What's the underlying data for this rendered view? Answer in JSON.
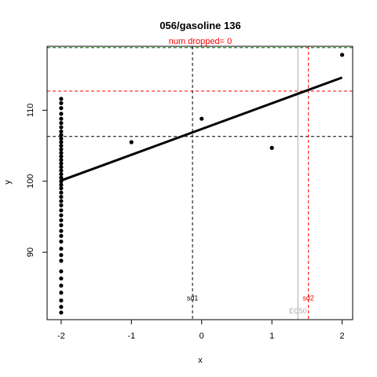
{
  "chart_data": {
    "type": "scatter",
    "title": "056/gasoline 136",
    "subtitle": "num dropped= 0",
    "xlabel": "x",
    "ylabel": "y",
    "xlim": [
      -2.2,
      2.15
    ],
    "ylim": [
      80.5,
      119.0
    ],
    "x_ticks": [
      -2,
      -1,
      0,
      1,
      2
    ],
    "x_tick_labels": [
      "-2",
      "-1",
      "0",
      "1",
      "2"
    ],
    "y_ticks": [
      90,
      100,
      110
    ],
    "y_tick_labels": [
      "90",
      "100",
      "110"
    ],
    "points": [
      [
        -2,
        81.5
      ],
      [
        -2,
        82.3
      ],
      [
        -2,
        83.2
      ],
      [
        -2,
        84.3
      ],
      [
        -2,
        85.3
      ],
      [
        -2,
        86.3
      ],
      [
        -2,
        87.3
      ],
      [
        -2,
        88.8
      ],
      [
        -2,
        89.6
      ],
      [
        -2,
        90.5
      ],
      [
        -2,
        91.5
      ],
      [
        -2,
        92.3
      ],
      [
        -2,
        93.0
      ],
      [
        -2,
        93.8
      ],
      [
        -2,
        94.5
      ],
      [
        -2,
        95.2
      ],
      [
        -2,
        95.9
      ],
      [
        -2,
        96.6
      ],
      [
        -2,
        97.2
      ],
      [
        -2,
        97.8
      ],
      [
        -2,
        98.4
      ],
      [
        -2,
        99.0
      ],
      [
        -2,
        99.5
      ],
      [
        -2,
        100.0
      ],
      [
        -2,
        100.5
      ],
      [
        -2,
        101.0
      ],
      [
        -2,
        101.5
      ],
      [
        -2,
        102.0
      ],
      [
        -2,
        102.5
      ],
      [
        -2,
        103.0
      ],
      [
        -2,
        103.5
      ],
      [
        -2,
        104.0
      ],
      [
        -2,
        104.5
      ],
      [
        -2,
        105.0
      ],
      [
        -2,
        105.5
      ],
      [
        -2,
        106.0
      ],
      [
        -2,
        106.5
      ],
      [
        -2,
        107.0
      ],
      [
        -2,
        107.6
      ],
      [
        -2,
        108.2
      ],
      [
        -2,
        108.8
      ],
      [
        -2,
        109.5
      ],
      [
        -2,
        110.3
      ],
      [
        -2,
        111.0
      ],
      [
        -2,
        111.6
      ],
      [
        -1,
        105.5
      ],
      [
        0,
        108.8
      ],
      [
        1,
        104.7
      ],
      [
        2,
        117.8
      ]
    ],
    "fit_line": [
      [
        -2,
        100.1
      ],
      [
        2,
        114.6
      ]
    ],
    "reference_lines": [
      {
        "orientation": "horizontal",
        "value": 118.8,
        "color": "#008000",
        "style": "dashed"
      },
      {
        "orientation": "horizontal",
        "value": 112.7,
        "color": "#ff0000",
        "style": "dashed"
      },
      {
        "orientation": "horizontal",
        "value": 106.3,
        "color": "#000000",
        "style": "dashed"
      },
      {
        "orientation": "vertical",
        "value": -0.13,
        "color": "#000000",
        "style": "dashed"
      },
      {
        "orientation": "vertical",
        "value": 1.37,
        "color": "#aaaaaa",
        "style": "solid"
      },
      {
        "orientation": "vertical",
        "value": 1.52,
        "color": "#ff0000",
        "style": "dashed"
      }
    ],
    "annotations": [
      {
        "text": "sd1",
        "x": -0.13,
        "y": 83.2,
        "color": "#000000"
      },
      {
        "text": "sd2",
        "x": 1.52,
        "y": 83.2,
        "color": "#ff0000"
      },
      {
        "text": "EC50",
        "x": 1.37,
        "y": 81.4,
        "color": "#aaaaaa"
      }
    ],
    "grid": false,
    "legend": "none"
  }
}
